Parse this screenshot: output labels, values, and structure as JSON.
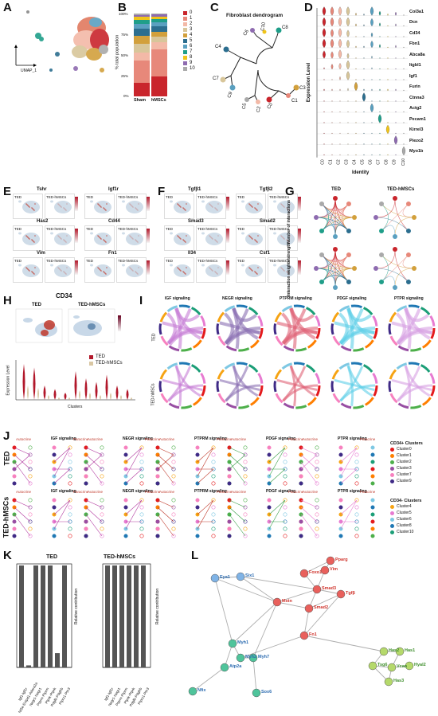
{
  "panels": {
    "A": {
      "label": "A",
      "axis": "UMAP_1"
    },
    "B": {
      "label": "B",
      "ylabel": "% total population",
      "ticks": [
        "100%",
        "75%",
        "50%",
        "25%",
        "0%"
      ],
      "categories": [
        "Sham",
        "hMSCs"
      ],
      "legend": [
        "0",
        "1",
        "2",
        "3",
        "4",
        "5",
        "6",
        "7",
        "8",
        "9",
        "10"
      ],
      "colors": [
        "#c9252c",
        "#e7887a",
        "#f3b9a7",
        "#d8c69a",
        "#d2a03c",
        "#2c6e8f",
        "#5aa0c0",
        "#1f9e89",
        "#f0c419",
        "#8e6bb0",
        "#a9a9a9"
      ]
    },
    "C": {
      "label": "C",
      "title": "Fibroblast dendrogram",
      "leaves": [
        "C6",
        "C10",
        "C8",
        "C4",
        "C7",
        "C9",
        "C5",
        "C2",
        "C0",
        "C1",
        "C3"
      ]
    },
    "D": {
      "label": "D",
      "ylabel": "Expression Level",
      "xlabel": "Identity",
      "genes": [
        "Col3a1",
        "Dcn",
        "Cd34",
        "Fbn1",
        "Abca8a",
        "Itgbl1",
        "Igf1",
        "Furin",
        "Ctnna3",
        "Actg2",
        "Pecam1",
        "Kirrel3",
        "Piezo2",
        "Myo1b"
      ],
      "clusters": [
        "C0",
        "C1",
        "C2",
        "C3",
        "C4",
        "C5",
        "C6",
        "C7",
        "C8",
        "C9",
        "C10"
      ]
    },
    "E": {
      "label": "E",
      "genes": [
        "Tshr",
        "Igf1r",
        "Has2",
        "Cd44",
        "Vim",
        "Fn1"
      ],
      "conditions": [
        "TED",
        "TED-hMSCs"
      ]
    },
    "F": {
      "label": "F",
      "genes": [
        "Tgfβ1",
        "Tgfβ2",
        "Smad3",
        "Smad2",
        "Il34",
        "Csf1"
      ],
      "conditions": [
        "TED",
        "TED-hMSCs"
      ]
    },
    "G": {
      "label": "G",
      "conditions": [
        "TED",
        "TED-hMSCs"
      ],
      "rows": [
        "Number of interactions",
        "Interaction weights/strength"
      ]
    },
    "H": {
      "label": "H",
      "title": "CD34",
      "conditions": [
        "TED",
        "TED-hMSCs"
      ],
      "legend": [
        "TED",
        "TED-hMSCs"
      ],
      "ylabel": "Expression Level",
      "xlabel": "Clusters"
    },
    "I": {
      "label": "I",
      "pathways": [
        "IGF signaling",
        "NEGR signaling",
        "PTPRM signaling",
        "PDGF signaling",
        "PTPR signaling"
      ],
      "rows": [
        "TED",
        "TED-hMSCs"
      ]
    },
    "J": {
      "label": "J",
      "rows": [
        "TED",
        "TED-hMSCs"
      ],
      "pathways": [
        "IGF signaling",
        "NEGR signaling",
        "PTPRM signaling",
        "PDGF signaling",
        "PTPR signaling"
      ],
      "autocrine": "Autocrine",
      "paracrine": "Paracrine",
      "legend1_title": "CD34+ Clusters",
      "legend1": [
        "Cluster0",
        "Cluster1",
        "Cluster2",
        "Cluster3",
        "Cluster7",
        "Cluster9"
      ],
      "legend1_colors": [
        "#e41a1c",
        "#ff7f00",
        "#4daf4a",
        "#984ea3",
        "#f781bf",
        "#3f2a86"
      ],
      "legend2_title": "CD34- Clusters",
      "legend2": [
        "Cluster4",
        "Cluster5",
        "Cluster6",
        "Cluster8",
        "Cluster10"
      ],
      "legend2_colors": [
        "#f6a313",
        "#e77bd1",
        "#7ec8e3",
        "#1f78b4",
        "#1b9e77"
      ]
    },
    "K": {
      "label": "K",
      "titles": [
        "TED",
        "TED-hMSCs"
      ],
      "ylabel": "Relative contribution",
      "ted_pairs": [
        "Igf1-Igf1r",
        "Nt5e-Entpd1-Adora2a",
        "Negr1-Negr1",
        "Ptprm-Ptprm",
        "Ptprk-Ptprk",
        "Pdgfb-Pdgfrb",
        "Ptprz1-Ptn3"
      ],
      "ted_values": [
        1.0,
        0.02,
        1.0,
        1.0,
        1.0,
        0.14,
        1.0
      ],
      "hmsc_pairs": [
        "Igf1-Igf1r",
        "Negr1-Negr1",
        "Ptprm-Ptprm",
        "Ptprk-Ptprk",
        "Pdgfb-Pdgfrb",
        "Ptprz1-Ptn3"
      ],
      "hmsc_values": [
        1.0,
        1.0,
        1.0,
        1.0,
        1.0,
        1.0
      ]
    },
    "L": {
      "label": "L",
      "nodes_red": [
        "Pparg",
        "Foxo1",
        "Vim",
        "Smad3",
        "Tgfβ",
        "Smad2",
        "Fn1",
        "Mstn"
      ],
      "nodes_blue": [
        "Eya1",
        "Six1",
        "Nfix",
        "Sox6"
      ],
      "nodes_green": [
        "Myh1",
        "Myh2",
        "Myh7",
        "Atp2a"
      ],
      "nodes_lime": [
        "Has2",
        "Has1",
        "Tsg6",
        "Vcan",
        "Hyal2",
        "Has3"
      ]
    }
  }
}
